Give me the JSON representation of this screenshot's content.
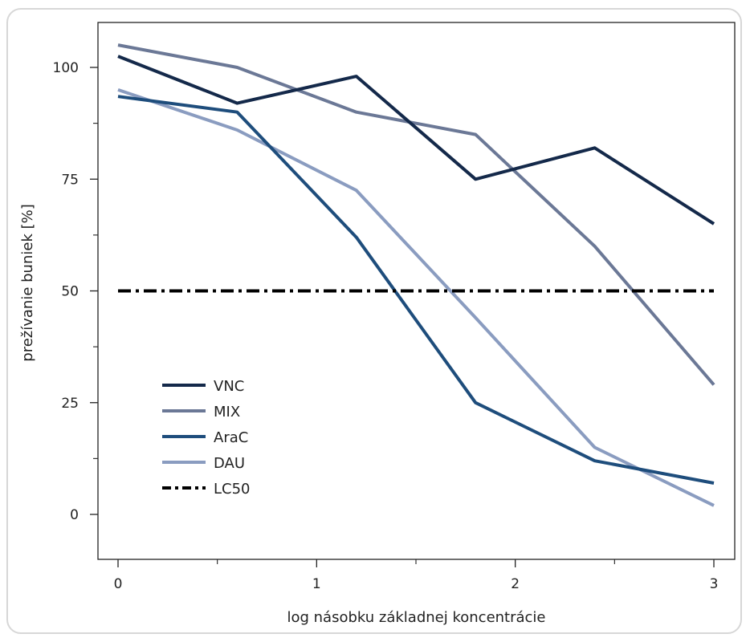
{
  "chart_data": {
    "type": "line",
    "xlabel": "log násobku základnej koncentrácie",
    "ylabel": "prežívanie buniek [%]",
    "xlim": [
      -0.1,
      3.1
    ],
    "ylim": [
      -10,
      110
    ],
    "x_ticks": [
      0,
      1,
      2,
      3
    ],
    "x_minor_ticks": [
      0.5,
      1.5,
      2.5
    ],
    "y_ticks": [
      0,
      25,
      50,
      75,
      100
    ],
    "y_minor_ticks": [
      12.5,
      37.5,
      62.5,
      87.5
    ],
    "legend_position": "lower-left",
    "grid": false,
    "series": [
      {
        "name": "VNC",
        "color": "#14294a",
        "dash": "solid",
        "x": [
          0,
          0.6,
          1.2,
          1.8,
          2.4,
          3.0
        ],
        "y": [
          102.5,
          92,
          98,
          75,
          82,
          65
        ]
      },
      {
        "name": "MIX",
        "color": "#6b7896",
        "dash": "solid",
        "x": [
          0,
          0.6,
          1.2,
          1.8,
          2.4,
          3.0
        ],
        "y": [
          105,
          100,
          90,
          85,
          60,
          29
        ]
      },
      {
        "name": "AraC",
        "color": "#1e4d7c",
        "dash": "solid",
        "x": [
          0,
          0.6,
          1.2,
          1.8,
          2.4,
          3.0
        ],
        "y": [
          93.5,
          90,
          62,
          25,
          12,
          7
        ]
      },
      {
        "name": "DAU",
        "color": "#8a9cc0",
        "dash": "solid",
        "x": [
          0,
          0.6,
          1.2,
          1.8,
          2.4,
          3.0
        ],
        "y": [
          95,
          86,
          72.5,
          44,
          15,
          2
        ]
      },
      {
        "name": "LC50",
        "color": "#000000",
        "dash": "dashdot",
        "x": [
          0,
          3.0
        ],
        "y": [
          50,
          50
        ]
      }
    ]
  }
}
